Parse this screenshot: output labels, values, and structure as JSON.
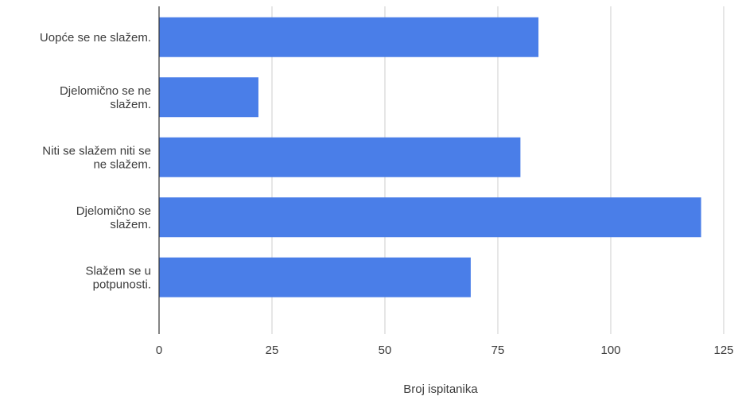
{
  "chart_data": {
    "type": "bar",
    "orientation": "horizontal",
    "title": "",
    "xlabel": "Broj ispitanika",
    "ylabel": "",
    "categories": [
      [
        "Uopće se ne slažem."
      ],
      [
        "Djelomično se ne",
        "slažem."
      ],
      [
        "Niti se slažem niti se",
        "ne slažem."
      ],
      [
        "Djelomično se",
        "slažem."
      ],
      [
        "Slažem se u",
        "potpunosti."
      ]
    ],
    "values": [
      84,
      22,
      80,
      120,
      69
    ],
    "xlim": [
      0,
      125
    ],
    "xticks": [
      0,
      25,
      50,
      75,
      100,
      125
    ],
    "grid": true,
    "legend": "none",
    "bar_color": "#4a7ee8",
    "grid_color": "#cccccc",
    "axis_color": "#333333"
  }
}
